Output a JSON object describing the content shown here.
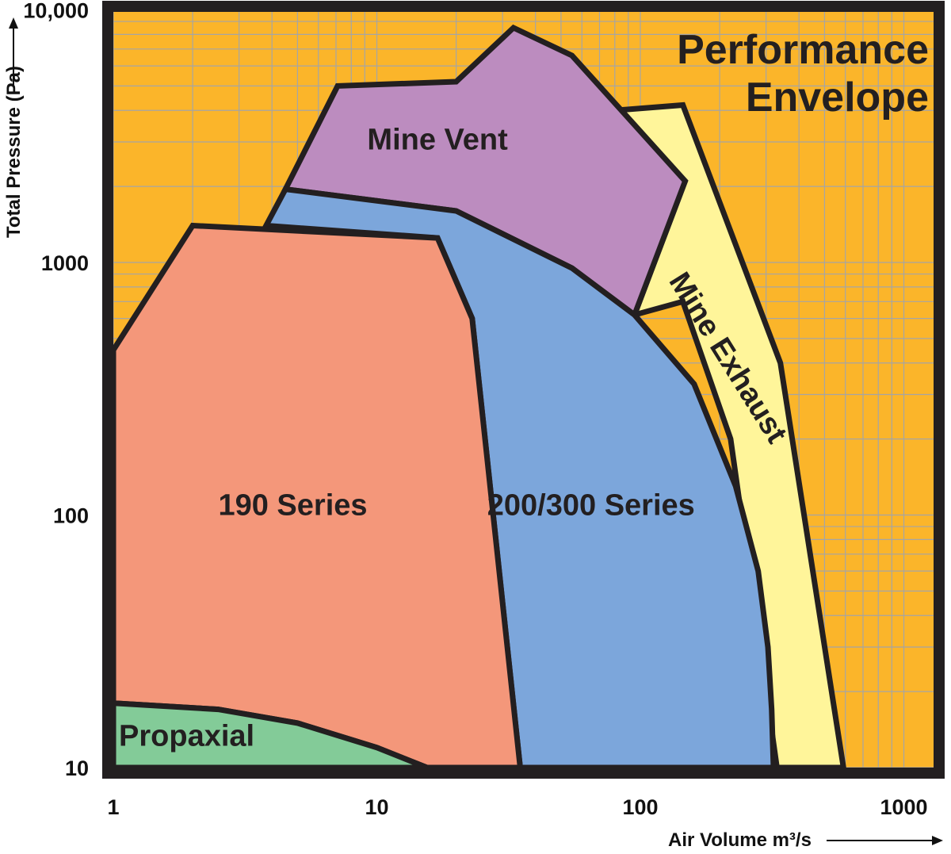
{
  "chart_data": {
    "type": "area",
    "title_lines": [
      "Performance",
      "Envelope"
    ],
    "xlabel": "Air Volume m³/s",
    "ylabel": "Total Pressure (Pa)",
    "xscale": "log",
    "yscale": "log",
    "xlim": [
      1,
      1500
    ],
    "ylim": [
      10,
      10000
    ],
    "x_ticks": [
      "1",
      "10",
      "100",
      "1000"
    ],
    "y_ticks": [
      "10",
      "100",
      "1000",
      "10,000"
    ],
    "grid": true,
    "background_color": "#fbb52a",
    "series": [
      {
        "name": "Mine Exhaust",
        "color": "#fff59a",
        "points": [
          [
            80,
            4000
          ],
          [
            145,
            4200
          ],
          [
            340,
            400
          ],
          [
            590,
            10
          ],
          [
            330,
            10
          ],
          [
            220,
            200
          ],
          [
            145,
            700
          ],
          [
            95,
            620
          ],
          [
            145,
            2000
          ]
        ]
      },
      {
        "name": "Mine Vent",
        "color": "#bc8cbf",
        "points": [
          [
            4.5,
            1950
          ],
          [
            7.1,
            5000
          ],
          [
            20,
            5200
          ],
          [
            33,
            8500
          ],
          [
            55,
            6600
          ],
          [
            148,
            2100
          ],
          [
            95,
            620
          ],
          [
            55,
            950
          ],
          [
            20,
            1600
          ]
        ]
      },
      {
        "name": "200/300 Series",
        "color": "#7ca6db",
        "points": [
          [
            3.8,
            1400
          ],
          [
            4.5,
            1950
          ],
          [
            20,
            1600
          ],
          [
            55,
            950
          ],
          [
            95,
            620
          ],
          [
            160,
            330
          ],
          [
            230,
            130
          ],
          [
            280,
            60
          ],
          [
            305,
            30
          ],
          [
            315,
            17
          ],
          [
            320,
            10
          ],
          [
            35,
            10
          ],
          [
            23,
            600
          ],
          [
            17,
            1250
          ]
        ]
      },
      {
        "name": "190 Series",
        "color": "#f4977a",
        "points": [
          [
            1,
            450
          ],
          [
            2,
            1400
          ],
          [
            17,
            1250
          ],
          [
            23,
            600
          ],
          [
            35,
            10
          ],
          [
            15.5,
            10
          ],
          [
            10,
            12
          ],
          [
            5,
            15
          ],
          [
            2.5,
            17
          ],
          [
            1,
            18
          ]
        ]
      },
      {
        "name": "Propaxial",
        "color": "#83cb98",
        "points": [
          [
            1,
            18
          ],
          [
            2.5,
            17
          ],
          [
            5,
            15
          ],
          [
            10,
            12
          ],
          [
            15.5,
            10
          ],
          [
            1,
            10
          ]
        ]
      }
    ],
    "labels": [
      {
        "text": "Mine Vent",
        "x": 17,
        "y": 2800
      },
      {
        "text": "200/300 Series",
        "x": 65,
        "y": 100
      },
      {
        "text": "190 Series",
        "x": 4.8,
        "y": 100
      },
      {
        "text": "Propaxial",
        "x": 3,
        "y": 13
      },
      {
        "text": "Mine Exhaust",
        "x": 200,
        "y": 400
      }
    ]
  },
  "colors": {
    "frame": "#231f20",
    "grid": "#a5a5a5"
  }
}
